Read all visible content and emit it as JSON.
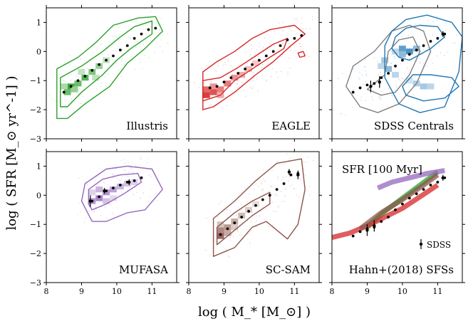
{
  "figure": {
    "xlabel": "log ( M_* [M_⊙] )",
    "ylabel": "log ( SFR [M_⊙ yr^-1] )",
    "xlim": [
      8,
      11.7
    ],
    "ylim": [
      -3,
      1.5
    ],
    "xticks": [
      8,
      9,
      10,
      11
    ],
    "yticks": [
      -3,
      -2,
      -1,
      0,
      1
    ]
  },
  "chart_data": [
    {
      "type": "heatmap",
      "title": "Illustris",
      "color": "#2ca02c",
      "cells": [
        [
          8.6,
          -1.4,
          0.7
        ],
        [
          8.7,
          -1.2,
          0.9
        ],
        [
          8.9,
          -1.1,
          0.7
        ],
        [
          9.1,
          -0.9,
          0.8
        ],
        [
          9.3,
          -0.7,
          0.6
        ],
        [
          9.5,
          -0.5,
          0.5
        ],
        [
          9.7,
          -0.3,
          0.3
        ],
        [
          8.5,
          -1.2,
          0.4
        ],
        [
          8.8,
          -1.3,
          0.5
        ],
        [
          9.0,
          -0.7,
          0.3
        ],
        [
          9.4,
          -0.9,
          0.3
        ]
      ],
      "median_x": [
        8.5,
        8.7,
        8.9,
        9.1,
        9.3,
        9.5,
        9.7,
        9.9,
        10.1,
        10.3,
        10.5,
        10.7,
        10.9,
        11.1
      ],
      "median_y": [
        -1.4,
        -1.2,
        -1.0,
        -0.85,
        -0.65,
        -0.45,
        -0.3,
        -0.15,
        0.05,
        0.2,
        0.45,
        0.6,
        0.75,
        0.8
      ],
      "contour_color": "#2ca02c",
      "contours": [
        [
          [
            8.4,
            -1.9
          ],
          [
            8.4,
            -0.9
          ],
          [
            9.0,
            -0.5
          ],
          [
            9.6,
            0.0
          ],
          [
            10.1,
            0.5
          ],
          [
            10.5,
            0.85
          ],
          [
            11.0,
            1.05
          ],
          [
            11.0,
            0.6
          ],
          [
            10.4,
            0.1
          ],
          [
            10.0,
            -0.3
          ],
          [
            9.6,
            -0.8
          ],
          [
            9.0,
            -1.4
          ],
          [
            8.6,
            -1.9
          ]
        ],
        [
          [
            8.3,
            -2.3
          ],
          [
            8.3,
            -0.6
          ],
          [
            8.9,
            -0.2
          ],
          [
            9.4,
            0.3
          ],
          [
            9.9,
            0.9
          ],
          [
            10.6,
            1.15
          ],
          [
            11.1,
            1.2
          ],
          [
            11.3,
            0.7
          ],
          [
            10.8,
            0.1
          ],
          [
            10.3,
            -0.4
          ],
          [
            9.8,
            -1.2
          ],
          [
            9.1,
            -1.8
          ],
          [
            8.6,
            -2.3
          ]
        ]
      ]
    },
    {
      "type": "heatmap",
      "title": "EAGLE",
      "color": "#d62728",
      "cells": [
        [
          8.5,
          -1.5,
          0.9
        ],
        [
          8.7,
          -1.4,
          0.8
        ],
        [
          8.5,
          -1.3,
          0.7
        ],
        [
          8.9,
          -1.3,
          0.6
        ],
        [
          9.1,
          -1.1,
          0.6
        ],
        [
          9.3,
          -0.9,
          0.5
        ],
        [
          9.5,
          -0.8,
          0.4
        ],
        [
          9.7,
          -0.6,
          0.3
        ],
        [
          8.7,
          -1.2,
          0.5
        ],
        [
          9.9,
          -0.4,
          0.25
        ],
        [
          8.9,
          -1.5,
          0.4
        ]
      ],
      "median_x": [
        8.6,
        8.8,
        9.0,
        9.2,
        9.4,
        9.6,
        9.8,
        10.0,
        10.2,
        10.4,
        10.6,
        10.8,
        11.0,
        11.2
      ],
      "median_y": [
        -1.25,
        -1.2,
        -1.05,
        -0.9,
        -0.75,
        -0.6,
        -0.45,
        -0.3,
        -0.15,
        0.0,
        0.2,
        0.4,
        0.45,
        0.55
      ],
      "contour_color": "#d62728",
      "contours": [
        [
          [
            8.4,
            -1.7
          ],
          [
            8.4,
            -1.0
          ],
          [
            8.9,
            -0.9
          ],
          [
            9.4,
            -0.55
          ],
          [
            9.9,
            -0.15
          ],
          [
            10.4,
            0.25
          ],
          [
            10.8,
            0.45
          ],
          [
            10.7,
            0.1
          ],
          [
            10.3,
            -0.2
          ],
          [
            9.8,
            -0.6
          ],
          [
            9.3,
            -1.0
          ],
          [
            8.9,
            -1.5
          ]
        ],
        [
          [
            8.4,
            -2.0
          ],
          [
            8.4,
            -0.7
          ],
          [
            8.8,
            -0.35
          ],
          [
            9.3,
            0.0
          ],
          [
            9.8,
            0.45
          ],
          [
            10.3,
            0.75
          ],
          [
            11.0,
            0.9
          ],
          [
            11.3,
            0.6
          ],
          [
            10.9,
            0.2
          ],
          [
            10.4,
            -0.35
          ],
          [
            9.9,
            -0.8
          ],
          [
            9.3,
            -1.4
          ],
          [
            8.7,
            -1.9
          ]
        ],
        [
          [
            11.1,
            -0.05
          ],
          [
            11.25,
            0.0
          ],
          [
            11.3,
            -0.15
          ],
          [
            11.15,
            -0.2
          ]
        ]
      ]
    },
    {
      "type": "heatmap",
      "title": "SDSS Centrals",
      "color": "#1f77b4",
      "cells": [
        [
          10.0,
          0.1,
          0.7
        ],
        [
          10.2,
          0.0,
          0.8
        ],
        [
          10.0,
          -0.1,
          0.5
        ],
        [
          10.4,
          0.1,
          0.5
        ],
        [
          9.8,
          0.0,
          0.3
        ],
        [
          10.4,
          -1.1,
          0.35
        ],
        [
          10.6,
          -1.2,
          0.4
        ],
        [
          10.8,
          -1.2,
          0.3
        ],
        [
          10.2,
          -1.0,
          0.2
        ],
        [
          9.6,
          -0.6,
          0.5
        ],
        [
          9.4,
          -0.5,
          0.3
        ],
        [
          9.8,
          -0.8,
          0.3
        ],
        [
          9.5,
          -0.3,
          0.4
        ]
      ],
      "median_x": [
        8.6,
        8.8,
        9.0,
        9.2,
        9.4,
        9.6,
        9.8,
        10.0,
        10.2,
        10.4,
        10.6,
        10.8,
        11.0,
        11.2
      ],
      "median_y": [
        -1.4,
        -1.25,
        -1.15,
        -1.1,
        -0.9,
        -0.75,
        -0.5,
        -0.3,
        -0.1,
        0.05,
        0.2,
        0.35,
        0.45,
        0.6
      ],
      "contour_color": "#7f7f7f",
      "contours": [
        [
          [
            9.0,
            -1.3
          ],
          [
            9.5,
            -0.8
          ],
          [
            9.6,
            0.0
          ],
          [
            9.9,
            0.4
          ],
          [
            10.3,
            0.5
          ],
          [
            10.5,
            0.0
          ],
          [
            10.2,
            -0.8
          ],
          [
            9.8,
            -1.4
          ],
          [
            9.4,
            -1.5
          ]
        ],
        [
          [
            8.4,
            -1.2
          ],
          [
            8.6,
            -0.5
          ],
          [
            9.2,
            0.0
          ],
          [
            9.7,
            0.7
          ],
          [
            10.2,
            0.9
          ],
          [
            10.6,
            0.7
          ],
          [
            10.8,
            0.0
          ],
          [
            10.4,
            -1.1
          ],
          [
            9.9,
            -1.8
          ],
          [
            9.3,
            -2.1
          ],
          [
            8.8,
            -1.9
          ]
        ]
      ],
      "contours2_color": "#1f77b4",
      "contours2": [
        [
          [
            9.7,
            0.1
          ],
          [
            9.8,
            0.5
          ],
          [
            10.1,
            0.8
          ],
          [
            10.5,
            0.9
          ],
          [
            11.0,
            0.85
          ],
          [
            11.2,
            0.5
          ],
          [
            10.8,
            0.1
          ],
          [
            10.2,
            -0.3
          ],
          [
            9.9,
            -0.2
          ]
        ],
        [
          [
            10.0,
            -1.2
          ],
          [
            10.3,
            -0.8
          ],
          [
            10.8,
            -0.8
          ],
          [
            11.4,
            -0.9
          ],
          [
            11.6,
            -1.2
          ],
          [
            11.2,
            -1.6
          ],
          [
            10.6,
            -1.7
          ],
          [
            10.1,
            -1.5
          ]
        ],
        [
          [
            9.5,
            0.2
          ],
          [
            9.7,
            0.7
          ],
          [
            10.1,
            1.1
          ],
          [
            10.7,
            1.25
          ],
          [
            11.4,
            1.0
          ],
          [
            11.7,
            0.5
          ],
          [
            11.6,
            -0.7
          ],
          [
            11.2,
            -1.9
          ],
          [
            10.5,
            -2.1
          ],
          [
            9.9,
            -1.8
          ],
          [
            9.5,
            -0.9
          ]
        ]
      ],
      "errorbars": [
        [
          9.1,
          -1.2,
          0.2
        ],
        [
          9.35,
          -1.05,
          0.2
        ],
        [
          11.15,
          0.6,
          0.1
        ]
      ]
    },
    {
      "type": "heatmap",
      "title": "MUFASA",
      "color": "#9467bd",
      "cells": [
        [
          9.3,
          -0.2,
          0.7
        ],
        [
          9.5,
          -0.1,
          0.8
        ],
        [
          9.7,
          0.1,
          0.7
        ],
        [
          9.9,
          0.2,
          0.6
        ],
        [
          10.1,
          0.3,
          0.5
        ],
        [
          10.3,
          0.4,
          0.4
        ],
        [
          9.5,
          0.2,
          0.5
        ],
        [
          9.7,
          -0.2,
          0.4
        ],
        [
          9.3,
          0.1,
          0.3
        ],
        [
          10.5,
          0.45,
          0.3
        ],
        [
          9.9,
          -0.1,
          0.25
        ]
      ],
      "median_x": [
        9.3,
        9.5,
        9.7,
        9.9,
        10.1,
        10.3,
        10.5,
        10.7
      ],
      "median_y": [
        -0.2,
        -0.05,
        0.15,
        0.25,
        0.35,
        0.45,
        0.5,
        0.6
      ],
      "contour_color": "#9467bd",
      "contours": [
        [
          [
            9.2,
            -0.3
          ],
          [
            9.2,
            0.2
          ],
          [
            9.6,
            0.55
          ],
          [
            10.1,
            0.7
          ],
          [
            10.6,
            0.75
          ],
          [
            10.7,
            0.45
          ],
          [
            10.2,
            0.05
          ],
          [
            9.7,
            -0.3
          ],
          [
            9.3,
            -0.5
          ]
        ],
        [
          [
            9.0,
            -0.2
          ],
          [
            9.1,
            0.4
          ],
          [
            9.7,
            0.9
          ],
          [
            10.3,
            1.0
          ],
          [
            11.0,
            0.9
          ],
          [
            11.3,
            0.2
          ],
          [
            10.8,
            -0.5
          ],
          [
            10.3,
            -0.6
          ],
          [
            9.7,
            -0.9
          ],
          [
            9.3,
            -0.9
          ]
        ]
      ],
      "errorbars": [
        [
          9.25,
          -0.2,
          0.2
        ],
        [
          9.65,
          0.15,
          0.1
        ],
        [
          10.35,
          0.45,
          0.1
        ]
      ]
    },
    {
      "type": "heatmap",
      "title": "SC-SAM",
      "color": "#8c564b",
      "cells": [
        [
          8.9,
          -1.4,
          0.9
        ],
        [
          8.9,
          -1.2,
          0.7
        ],
        [
          9.1,
          -1.1,
          0.6
        ],
        [
          9.3,
          -0.9,
          0.5
        ],
        [
          9.5,
          -0.7,
          0.4
        ],
        [
          9.7,
          -0.5,
          0.3
        ],
        [
          9.1,
          -1.3,
          0.5
        ],
        [
          9.3,
          -1.1,
          0.3
        ],
        [
          9.9,
          -0.3,
          0.2
        ],
        [
          8.9,
          -1.0,
          0.35
        ]
      ],
      "median_x": [
        8.9,
        9.1,
        9.3,
        9.5,
        9.7,
        9.9,
        10.1,
        10.3,
        10.5,
        10.7,
        10.9,
        11.1
      ],
      "median_y": [
        -1.35,
        -1.15,
        -0.95,
        -0.75,
        -0.55,
        -0.35,
        -0.15,
        0.0,
        0.2,
        0.4,
        0.7,
        0.75
      ],
      "contour_color": "#8c564b",
      "contours": [
        [
          [
            8.8,
            -1.7
          ],
          [
            8.8,
            -1.1
          ],
          [
            9.3,
            -0.6
          ],
          [
            9.8,
            -0.2
          ],
          [
            10.3,
            0.1
          ],
          [
            10.3,
            -0.3
          ],
          [
            9.8,
            -0.7
          ],
          [
            9.3,
            -1.2
          ]
        ],
        [
          [
            8.7,
            -2.1
          ],
          [
            8.7,
            -0.8
          ],
          [
            9.3,
            -0.2
          ],
          [
            9.9,
            0.5
          ],
          [
            10.5,
            1.1
          ],
          [
            11.2,
            1.25
          ],
          [
            11.3,
            0.2
          ],
          [
            11.1,
            -1.0
          ],
          [
            10.8,
            -1.5
          ],
          [
            10.2,
            -0.9
          ],
          [
            9.8,
            -1.1
          ],
          [
            9.3,
            -1.8
          ]
        ]
      ],
      "errorbars": [
        [
          10.85,
          0.8,
          0.1
        ],
        [
          11.1,
          0.7,
          0.15
        ]
      ]
    },
    {
      "type": "line",
      "title": "Hahn+(2018) SFSs",
      "annotation": "SFR [100 Myr]",
      "legend": "SDSS",
      "series": [
        {
          "name": "Illustris",
          "color": "#2ca02c",
          "x": [
            9.0,
            9.5,
            10.0,
            10.5,
            11.0
          ],
          "y": [
            -1.1,
            -0.55,
            -0.1,
            0.35,
            0.8
          ]
        },
        {
          "name": "EAGLE",
          "color": "#d62728",
          "x": [
            8.0,
            8.5,
            9.0,
            9.5,
            10.0,
            10.5,
            11.0
          ],
          "y": [
            -1.45,
            -1.3,
            -1.05,
            -0.75,
            -0.45,
            -0.05,
            0.35
          ]
        },
        {
          "name": "MUFASA",
          "color": "#9467bd",
          "x": [
            9.3,
            9.7,
            10.2,
            10.7,
            11.2
          ],
          "y": [
            0.25,
            0.45,
            0.6,
            0.75,
            0.85
          ]
        },
        {
          "name": "SC-SAM",
          "color": "#8c564b",
          "x": [
            8.8,
            9.4,
            10.0,
            10.6,
            11.0
          ],
          "y": [
            -1.15,
            -0.6,
            -0.15,
            0.35,
            0.7
          ]
        }
      ],
      "sdss_x": [
        8.6,
        8.8,
        9.0,
        9.2,
        9.4,
        9.6,
        9.8,
        10.0,
        10.2,
        10.4,
        10.6,
        10.8,
        11.0,
        11.2
      ],
      "sdss_y": [
        -1.4,
        -1.25,
        -1.15,
        -1.1,
        -0.9,
        -0.75,
        -0.5,
        -0.3,
        -0.1,
        0.05,
        0.2,
        0.35,
        0.45,
        0.6
      ],
      "errorbars": [
        [
          9.0,
          -1.2,
          0.2
        ],
        [
          9.2,
          -1.05,
          0.2
        ],
        [
          11.15,
          0.6,
          0.1
        ]
      ]
    }
  ]
}
